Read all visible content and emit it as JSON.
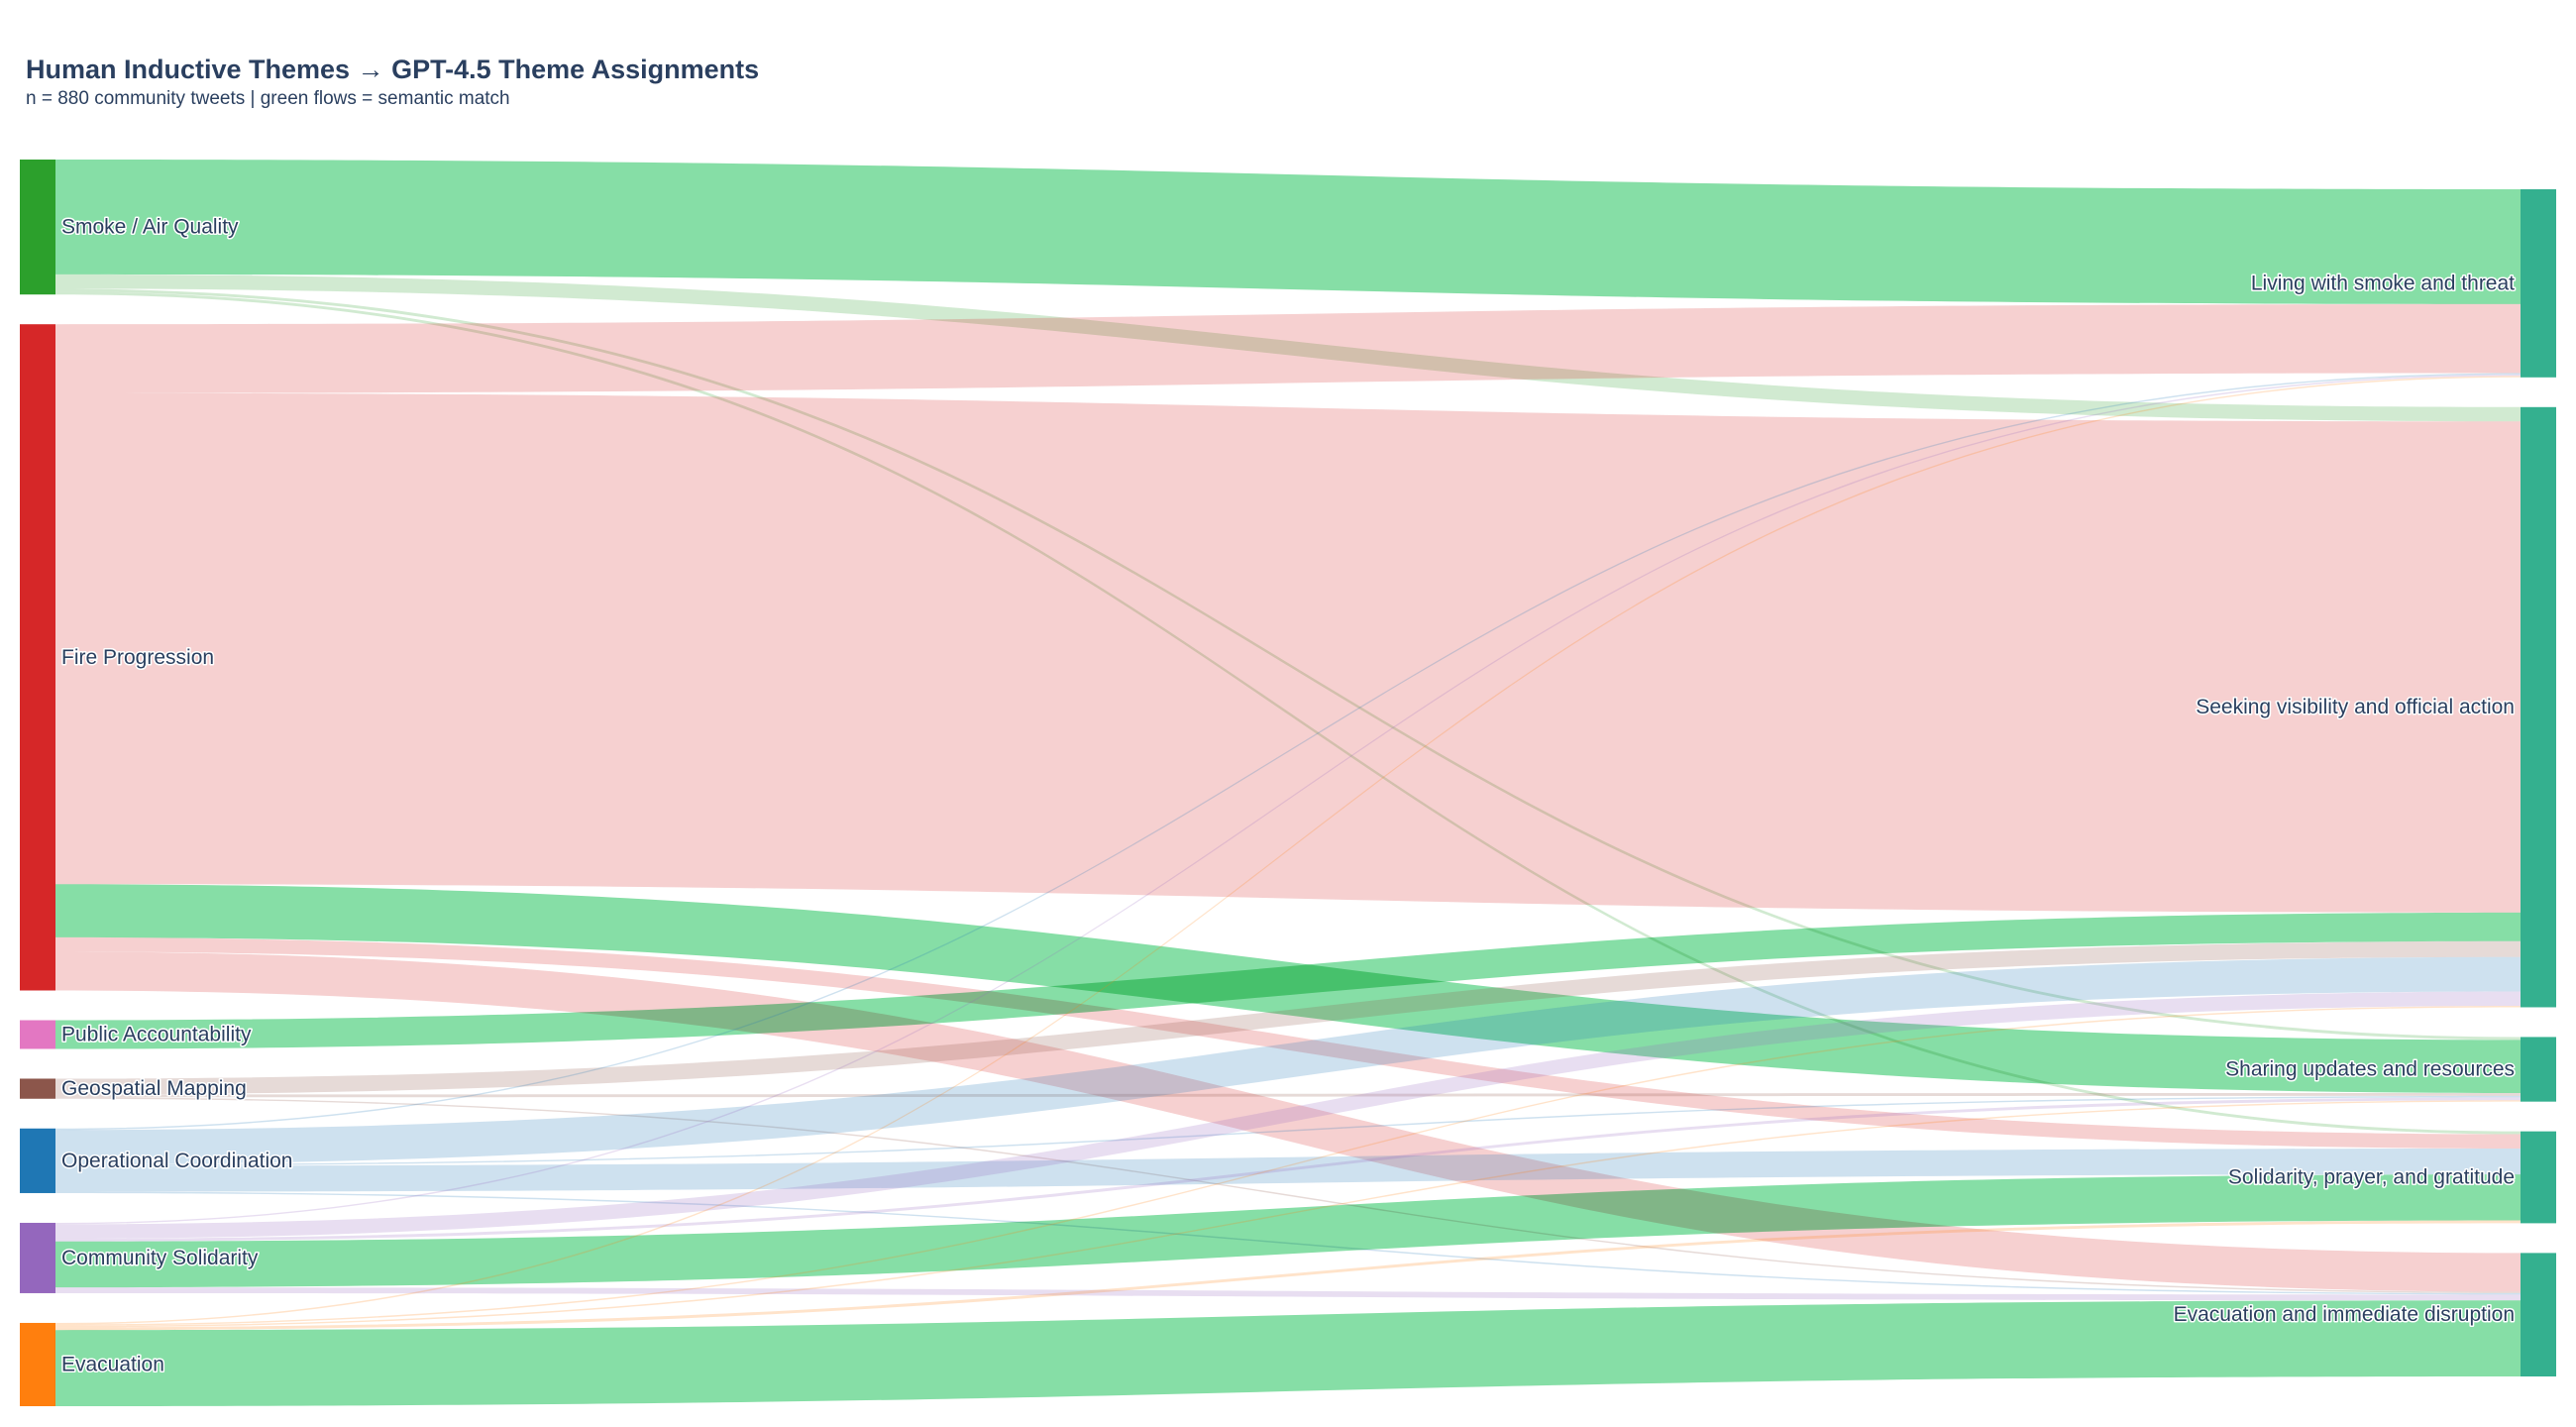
{
  "chart_data": {
    "type": "sankey",
    "title": "Human Inductive Themes → GPT-4.5 Theme Assignments",
    "subtitle": "n = 880 community tweets  |  green flows = semantic match",
    "source_nodes": [
      {
        "id": "smoke",
        "label": "Smoke / Air Quality",
        "color": "#2ca02c"
      },
      {
        "id": "fire",
        "label": "Fire Progression",
        "color": "#d62728"
      },
      {
        "id": "public",
        "label": "Public Accountability",
        "color": "#e377c2"
      },
      {
        "id": "geo",
        "label": "Geospatial Mapping",
        "color": "#8c564b"
      },
      {
        "id": "ops",
        "label": "Operational Coordination",
        "color": "#1f77b4"
      },
      {
        "id": "comm",
        "label": "Community Solidarity",
        "color": "#9467bd"
      },
      {
        "id": "evac",
        "label": "Evacuation",
        "color": "#ff7f0e"
      }
    ],
    "target_nodes": [
      {
        "id": "t_smoke",
        "label": "Living with smoke and threat",
        "color": "#34b08f"
      },
      {
        "id": "t_vis",
        "label": "Seeking visibility and official action",
        "color": "#34b08f"
      },
      {
        "id": "t_share",
        "label": "Sharing updates and resources",
        "color": "#34b08f"
      },
      {
        "id": "t_sol",
        "label": "Solidarity, prayer, and gratitude",
        "color": "#34b08f"
      },
      {
        "id": "t_evac",
        "label": "Evacuation and immediate disruption",
        "color": "#34b08f"
      }
    ],
    "links": [
      {
        "source": "smoke",
        "target": "t_smoke",
        "value": 80,
        "match": true
      },
      {
        "source": "smoke",
        "target": "t_vis",
        "value": 10,
        "match": false
      },
      {
        "source": "smoke",
        "target": "t_share",
        "value": 2,
        "match": false
      },
      {
        "source": "smoke",
        "target": "t_sol",
        "value": 2,
        "match": false
      },
      {
        "source": "fire",
        "target": "t_smoke",
        "value": 48,
        "match": false
      },
      {
        "source": "fire",
        "target": "t_vis",
        "value": 342,
        "match": false
      },
      {
        "source": "fire",
        "target": "t_share",
        "value": 37,
        "match": true
      },
      {
        "source": "fire",
        "target": "t_sol",
        "value": 10,
        "match": false
      },
      {
        "source": "fire",
        "target": "t_evac",
        "value": 27,
        "match": false
      },
      {
        "source": "public",
        "target": "t_vis",
        "value": 20,
        "match": true
      },
      {
        "source": "geo",
        "target": "t_vis",
        "value": 11,
        "match": false
      },
      {
        "source": "geo",
        "target": "t_share",
        "value": 2,
        "match": false
      },
      {
        "source": "geo",
        "target": "t_evac",
        "value": 1,
        "match": false
      },
      {
        "source": "ops",
        "target": "t_smoke",
        "value": 1,
        "match": false
      },
      {
        "source": "ops",
        "target": "t_vis",
        "value": 24,
        "match": false
      },
      {
        "source": "ops",
        "target": "t_share",
        "value": 1,
        "match": false
      },
      {
        "source": "ops",
        "target": "t_sol",
        "value": 18,
        "match": false
      },
      {
        "source": "ops",
        "target": "t_evac",
        "value": 1,
        "match": false
      },
      {
        "source": "comm",
        "target": "t_smoke",
        "value": 1,
        "match": false
      },
      {
        "source": "comm",
        "target": "t_vis",
        "value": 10,
        "match": false
      },
      {
        "source": "comm",
        "target": "t_share",
        "value": 2,
        "match": false
      },
      {
        "source": "comm",
        "target": "t_sol",
        "value": 32,
        "match": true
      },
      {
        "source": "comm",
        "target": "t_evac",
        "value": 4,
        "match": false
      },
      {
        "source": "evac",
        "target": "t_smoke",
        "value": 1,
        "match": false
      },
      {
        "source": "evac",
        "target": "t_vis",
        "value": 1,
        "match": false
      },
      {
        "source": "evac",
        "target": "t_share",
        "value": 1,
        "match": false
      },
      {
        "source": "evac",
        "target": "t_sol",
        "value": 2,
        "match": false
      },
      {
        "source": "evac",
        "target": "t_evac",
        "value": 53,
        "match": true
      }
    ],
    "colors": {
      "match_flow": "#86dea6",
      "target_node": "#34b08f"
    }
  }
}
